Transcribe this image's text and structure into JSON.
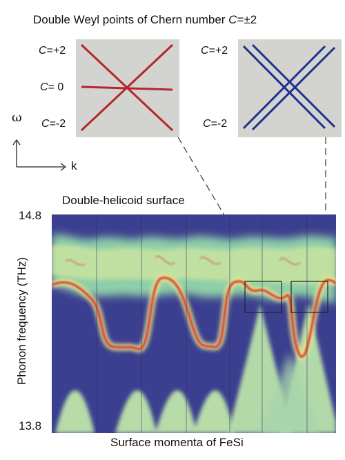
{
  "figure_title": {
    "prefix": "Double Weyl points of Chern number ",
    "var": "C",
    "suffix": "=±2"
  },
  "inset_left": {
    "labels": [
      {
        "var": "C",
        "text": "=+2"
      },
      {
        "var": "C",
        "text": "= 0"
      },
      {
        "var": "C",
        "text": "=-2"
      }
    ],
    "line_color": "#b3262a"
  },
  "inset_right": {
    "labels": [
      {
        "var": "C",
        "text": "=+2"
      },
      {
        "var": "C",
        "text": "=-2"
      }
    ],
    "line_color": "#1f2f8f"
  },
  "axes_key": {
    "y_symbol": "ω",
    "x_symbol": "k"
  },
  "panel_title": "Double-helicoid surface",
  "heatmap": {
    "ylabel": "Phonon frequency (THz)",
    "xlabel": "Surface momenta of FeSi",
    "y_ticks": [
      "14.8",
      "13.8"
    ],
    "ylim": [
      13.8,
      14.8
    ],
    "colors": {
      "background": "#3b3f8f",
      "bulk": "#a9d7a7",
      "surface": "#d8322b"
    }
  }
}
